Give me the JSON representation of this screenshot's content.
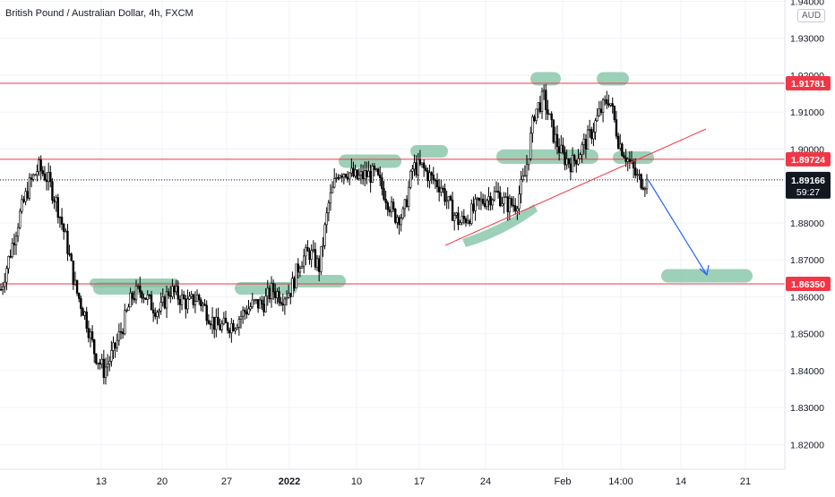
{
  "title": "British Pound / Australian Dollar, 4h, FXCM",
  "currency": "AUD",
  "price_axis": {
    "ticks": [
      "1.94000",
      "1.93000",
      "1.92000",
      "1.91000",
      "1.90000",
      "1.89000",
      "1.88000",
      "1.87000",
      "1.86000",
      "1.85000",
      "1.84000",
      "1.83000",
      "1.82000"
    ]
  },
  "time_axis": {
    "labels": [
      "13",
      "20",
      "27",
      "2022",
      "10",
      "17",
      "24",
      "Feb",
      "14:00",
      "14",
      "21"
    ]
  },
  "levels": [
    {
      "label": "1.91781",
      "value": 1.91781,
      "color": "#f23645"
    },
    {
      "label": "1.89724",
      "value": 1.89724,
      "color": "#f23645"
    },
    {
      "label": "1.86350",
      "value": 1.8635,
      "color": "#f23645"
    }
  ],
  "last_price": {
    "label": "1.89166",
    "value": 1.89166,
    "countdown": "59:27"
  },
  "colors": {
    "level": "#f23645",
    "highlight": "#81c3a4",
    "arrow": "#2962ff",
    "trendline": "#f23645",
    "candle": "#000000",
    "price_tag_bg": "#131722"
  },
  "chart_data": {
    "type": "candlestick",
    "title": "British Pound / Australian Dollar, 4h, FXCM",
    "xlabel": "",
    "ylabel": "",
    "ylim": [
      1.815,
      1.943
    ],
    "x_tick_labels": [
      "13",
      "20",
      "27",
      "2022",
      "10",
      "17",
      "24",
      "Feb",
      "14:00",
      "14",
      "21"
    ],
    "y_tick_labels": [
      "1.94000",
      "1.93000",
      "1.92000",
      "1.91000",
      "1.90000",
      "1.89000",
      "1.88000",
      "1.87000",
      "1.86000",
      "1.85000",
      "1.84000",
      "1.83000",
      "1.82000"
    ],
    "close_path": [
      1.862,
      1.872,
      1.882,
      1.89,
      1.895,
      1.892,
      1.885,
      1.875,
      1.862,
      1.855,
      1.845,
      1.84,
      1.845,
      1.852,
      1.86,
      1.862,
      1.858,
      1.856,
      1.862,
      1.86,
      1.858,
      1.86,
      1.856,
      1.852,
      1.852,
      1.853,
      1.856,
      1.858,
      1.858,
      1.862,
      1.86,
      1.862,
      1.87,
      1.872,
      1.868,
      1.885,
      1.894,
      1.894,
      1.892,
      1.893,
      1.893,
      1.888,
      1.882,
      1.882,
      1.895,
      1.895,
      1.892,
      1.89,
      1.884,
      1.88,
      1.882,
      1.885,
      1.887,
      1.888,
      1.885,
      1.885,
      1.893,
      1.91,
      1.914,
      1.904,
      1.898,
      1.896,
      1.9,
      1.904,
      1.91,
      1.914,
      1.902,
      1.897,
      1.892,
      1.891
    ],
    "horizontal_levels": [
      1.91781,
      1.89724,
      1.8635
    ],
    "last_price": 1.89166,
    "grid": true
  }
}
